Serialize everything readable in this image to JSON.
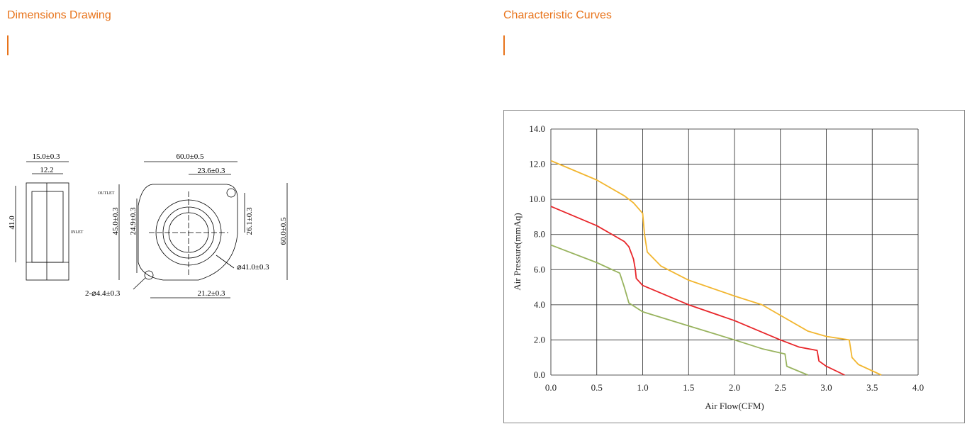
{
  "headings": {
    "left": "Dimensions Drawing",
    "right": "Characteristic Curves"
  },
  "drawing": {
    "labels": [
      "15.0±0.3",
      "12.2",
      "41.0",
      "OUTLET",
      "INLET",
      "60.0±0.5",
      "23.6±0.3",
      "45.0±0.3",
      "24.9±0.3",
      "26.1±0.3",
      "60.0±0.5",
      "⌀41.0±0.3",
      "2-⌀4.4±0.3",
      "21.2±0.3"
    ]
  },
  "chart_data": {
    "type": "line",
    "x_label": "Air Flow(CFM)",
    "y_label": "Air Pressure(mmAq)",
    "xlim": [
      0,
      4
    ],
    "ylim": [
      0,
      14
    ],
    "xticks": [
      {
        "value": 0,
        "label": "0.0"
      },
      0.5,
      {
        "value": 1,
        "label": "1.0"
      },
      1.5,
      {
        "value": 2,
        "label": "2.0"
      },
      2.5,
      {
        "value": 3,
        "label": "3.0"
      },
      3.5,
      {
        "value": 4,
        "label": "4.0"
      }
    ],
    "yticks": [
      {
        "value": 0,
        "label": "0.0"
      },
      {
        "value": 2,
        "label": "2.0"
      },
      {
        "value": 4,
        "label": "4.0"
      },
      {
        "value": 6,
        "label": "6.0"
      },
      {
        "value": 8,
        "label": "8.0"
      },
      {
        "value": 10,
        "label": "10.0"
      },
      {
        "value": 12,
        "label": "12.0"
      },
      {
        "value": 14,
        "label": "14.0"
      }
    ],
    "grid": true,
    "series": [
      {
        "color": "#f2b630",
        "x": [
          0,
          0.5,
          0.8,
          0.9,
          1.0,
          1.02,
          1.05,
          1.2,
          1.5,
          2.0,
          2.3,
          2.5,
          2.8,
          3.0,
          3.25,
          3.28,
          3.35,
          3.6
        ],
        "values": [
          12.2,
          11.1,
          10.2,
          9.8,
          9.2,
          8.0,
          7.0,
          6.2,
          5.4,
          4.5,
          4.0,
          3.4,
          2.5,
          2.2,
          2.0,
          1.0,
          0.6,
          0.0
        ]
      },
      {
        "color": "#e8262a",
        "x": [
          0,
          0.5,
          0.8,
          0.85,
          0.9,
          0.92,
          0.93,
          1.0,
          1.5,
          2.0,
          2.5,
          2.7,
          2.9,
          2.92,
          3.0,
          3.2
        ],
        "values": [
          9.6,
          8.5,
          7.6,
          7.3,
          6.6,
          6.0,
          5.5,
          5.1,
          4.0,
          3.1,
          2.0,
          1.6,
          1.4,
          0.8,
          0.5,
          0.0
        ]
      },
      {
        "color": "#98b35e",
        "x": [
          0,
          0.5,
          0.75,
          0.8,
          0.85,
          1.0,
          1.5,
          2.0,
          2.3,
          2.55,
          2.57,
          2.8
        ],
        "values": [
          7.4,
          6.4,
          5.8,
          5.0,
          4.1,
          3.6,
          2.8,
          2.0,
          1.5,
          1.2,
          0.5,
          0.0
        ]
      }
    ]
  }
}
